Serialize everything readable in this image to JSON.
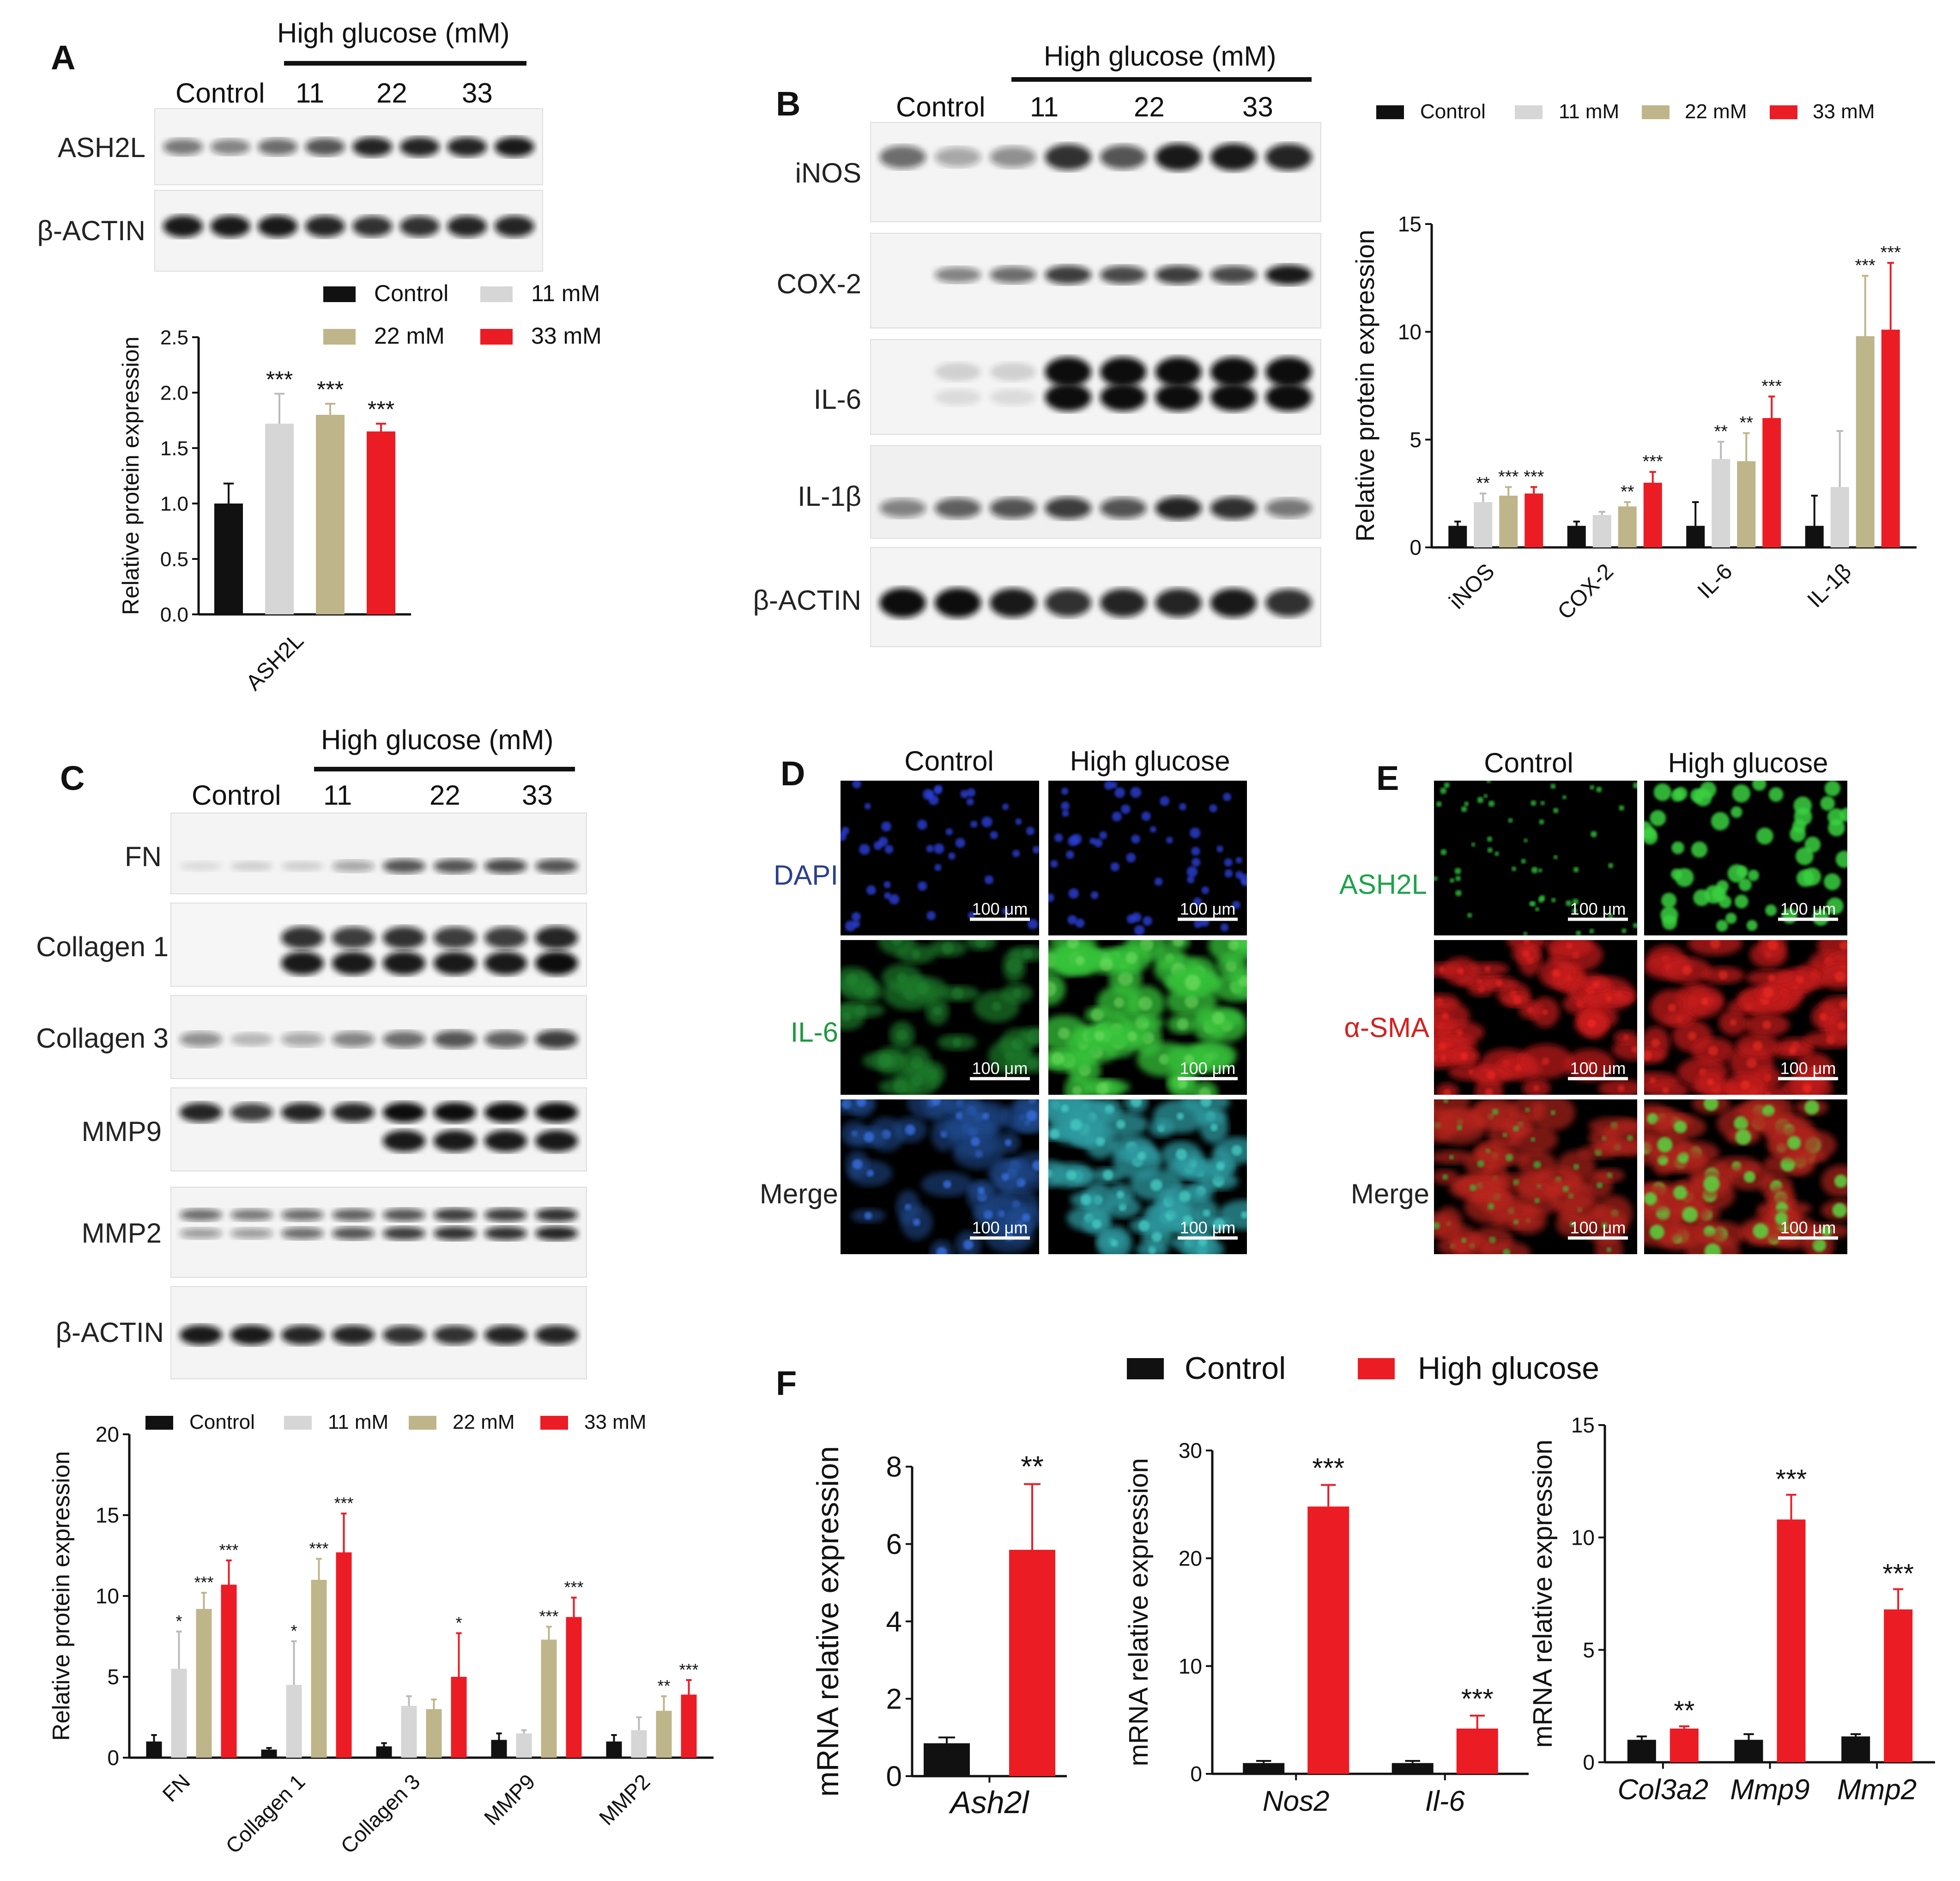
{
  "colors": {
    "control": "#111111",
    "c11": "#d6d6d6",
    "c22": "#bfb58a",
    "c33": "#ec1c24",
    "hg": "#ec1c24"
  },
  "labels": {
    "A": "A",
    "B": "B",
    "C": "C",
    "D": "D",
    "E": "E",
    "F": "F"
  },
  "lanes": {
    "control": "Control",
    "l11": "11",
    "l22": "22",
    "l33": "33"
  },
  "high_glucose_mm": "High glucose (mM)",
  "legend4": [
    "Control",
    "11 mM",
    "22 mM",
    "33 mM"
  ],
  "legend2": [
    "Control",
    "High glucose"
  ],
  "ylabel_protein": "Relative protein expression",
  "ylabel_mrna": "mRNA relative  expression",
  "panelA": {
    "blots": [
      "ASH2L",
      "β-ACTIN"
    ]
  },
  "panelB": {
    "blots": [
      "iNOS",
      "COX-2",
      "IL-6",
      "IL-1β",
      "β-ACTIN"
    ]
  },
  "panelC": {
    "blots": [
      "FN",
      "Collagen 1",
      "Collagen 3",
      "MMP9",
      "MMP2",
      "β-ACTIN"
    ]
  },
  "panelD": {
    "cols": [
      "Control",
      "High glucose"
    ],
    "rows": [
      "DAPI",
      "IL-6",
      "Merge"
    ],
    "scale": "100 μm"
  },
  "panelE": {
    "cols": [
      "Control",
      "High glucose"
    ],
    "rows": [
      "ASH2L",
      "α-SMA",
      "Merge"
    ],
    "scale": "100 μm"
  },
  "chart_data": [
    {
      "panel": "A",
      "type": "bar",
      "title": "",
      "categories": [
        "ASH2L"
      ],
      "ylim": [
        0,
        2.5
      ],
      "yticks": [
        0.0,
        0.5,
        1.0,
        1.5,
        2.0,
        2.5
      ],
      "series": [
        {
          "name": "Control",
          "values": [
            1.0
          ],
          "err": [
            0.18
          ]
        },
        {
          "name": "11 mM",
          "values": [
            1.72
          ],
          "err": [
            0.27
          ]
        },
        {
          "name": "22 mM",
          "values": [
            1.8
          ],
          "err": [
            0.1
          ]
        },
        {
          "name": "33 mM",
          "values": [
            1.65
          ],
          "err": [
            0.07
          ]
        }
      ],
      "sig": [
        [
          "",
          "***",
          "***",
          "***"
        ]
      ]
    },
    {
      "panel": "B",
      "type": "bar",
      "categories": [
        "iNOS",
        "COX-2",
        "IL-6",
        "IL-1β"
      ],
      "ylim": [
        0,
        15
      ],
      "yticks": [
        0,
        5,
        10,
        15
      ],
      "series": [
        {
          "name": "Control",
          "values": [
            1,
            1,
            1,
            1
          ],
          "err": [
            0.2,
            0.2,
            1.1,
            1.4
          ]
        },
        {
          "name": "11 mM",
          "values": [
            2.1,
            1.5,
            4.1,
            2.8
          ],
          "err": [
            0.4,
            0.15,
            0.8,
            2.6
          ]
        },
        {
          "name": "22 mM",
          "values": [
            2.4,
            1.9,
            4.0,
            9.8
          ],
          "err": [
            0.4,
            0.2,
            1.3,
            2.8
          ]
        },
        {
          "name": "33 mM",
          "values": [
            2.5,
            3.0,
            6.0,
            10.1
          ],
          "err": [
            0.3,
            0.5,
            1.0,
            3.1
          ]
        }
      ],
      "sig": [
        [
          "",
          "**",
          "***",
          "***"
        ],
        [
          "",
          "",
          "**",
          "***"
        ],
        [
          "",
          "**",
          "**",
          "***"
        ],
        [
          "",
          "",
          "***",
          "***"
        ]
      ]
    },
    {
      "panel": "C",
      "type": "bar",
      "categories": [
        "FN",
        "Collagen 1",
        "Collagen 3",
        "MMP9",
        "MMP2"
      ],
      "ylim": [
        0,
        20
      ],
      "yticks": [
        0,
        5,
        10,
        15,
        20
      ],
      "series": [
        {
          "name": "Control",
          "values": [
            1.0,
            0.5,
            0.7,
            1.1,
            1.0
          ],
          "err": [
            0.4,
            0.1,
            0.2,
            0.4,
            0.4
          ]
        },
        {
          "name": "11 mM",
          "values": [
            5.5,
            4.5,
            3.2,
            1.5,
            1.7
          ],
          "err": [
            2.3,
            2.7,
            0.6,
            0.2,
            0.8
          ]
        },
        {
          "name": "22 mM",
          "values": [
            9.2,
            11.0,
            3.0,
            7.3,
            2.9
          ],
          "err": [
            1.0,
            1.3,
            0.6,
            0.8,
            0.9
          ]
        },
        {
          "name": "33 mM",
          "values": [
            10.7,
            12.7,
            5.0,
            8.7,
            3.9
          ],
          "err": [
            1.5,
            2.4,
            2.7,
            1.2,
            0.9
          ]
        }
      ],
      "sig": [
        [
          "",
          "*",
          "***",
          "***"
        ],
        [
          "",
          "*",
          "***",
          "***"
        ],
        [
          "",
          "",
          "",
          "*"
        ],
        [
          "",
          "",
          "***",
          "***"
        ],
        [
          "",
          "",
          "**",
          "***"
        ]
      ]
    },
    {
      "panel": "F1",
      "type": "bar",
      "categories": [
        "Ash2l"
      ],
      "ylim": [
        0,
        8
      ],
      "yticks": [
        0,
        2,
        4,
        6,
        8
      ],
      "series": [
        {
          "name": "Control",
          "values": [
            0.85
          ],
          "err": [
            0.15
          ]
        },
        {
          "name": "High glucose",
          "values": [
            5.85
          ],
          "err": [
            1.7
          ]
        }
      ],
      "sig": [
        [
          "",
          "**"
        ]
      ]
    },
    {
      "panel": "F2",
      "type": "bar",
      "categories": [
        "Nos2",
        "Il-6"
      ],
      "ylim": [
        0,
        30
      ],
      "yticks": [
        0,
        10,
        20,
        30
      ],
      "series": [
        {
          "name": "Control",
          "values": [
            1.0,
            1.0
          ],
          "err": [
            0.2,
            0.2
          ]
        },
        {
          "name": "High glucose",
          "values": [
            24.8,
            4.2
          ],
          "err": [
            2.0,
            1.2
          ]
        }
      ],
      "sig": [
        [
          "",
          "***"
        ],
        [
          "",
          "***"
        ]
      ]
    },
    {
      "panel": "F3",
      "type": "bar",
      "categories": [
        "Col3a2",
        "Mmp9",
        "Mmp2"
      ],
      "ylim": [
        0,
        15
      ],
      "yticks": [
        0,
        5,
        10,
        15
      ],
      "series": [
        {
          "name": "Control",
          "values": [
            1.0,
            1.0,
            1.15
          ],
          "err": [
            0.15,
            0.25,
            0.1
          ]
        },
        {
          "name": "High glucose",
          "values": [
            1.5,
            10.8,
            6.8
          ],
          "err": [
            0.1,
            1.1,
            0.9
          ]
        }
      ],
      "sig": [
        [
          "",
          "**"
        ],
        [
          "",
          "***"
        ],
        [
          "",
          "***"
        ]
      ]
    }
  ]
}
